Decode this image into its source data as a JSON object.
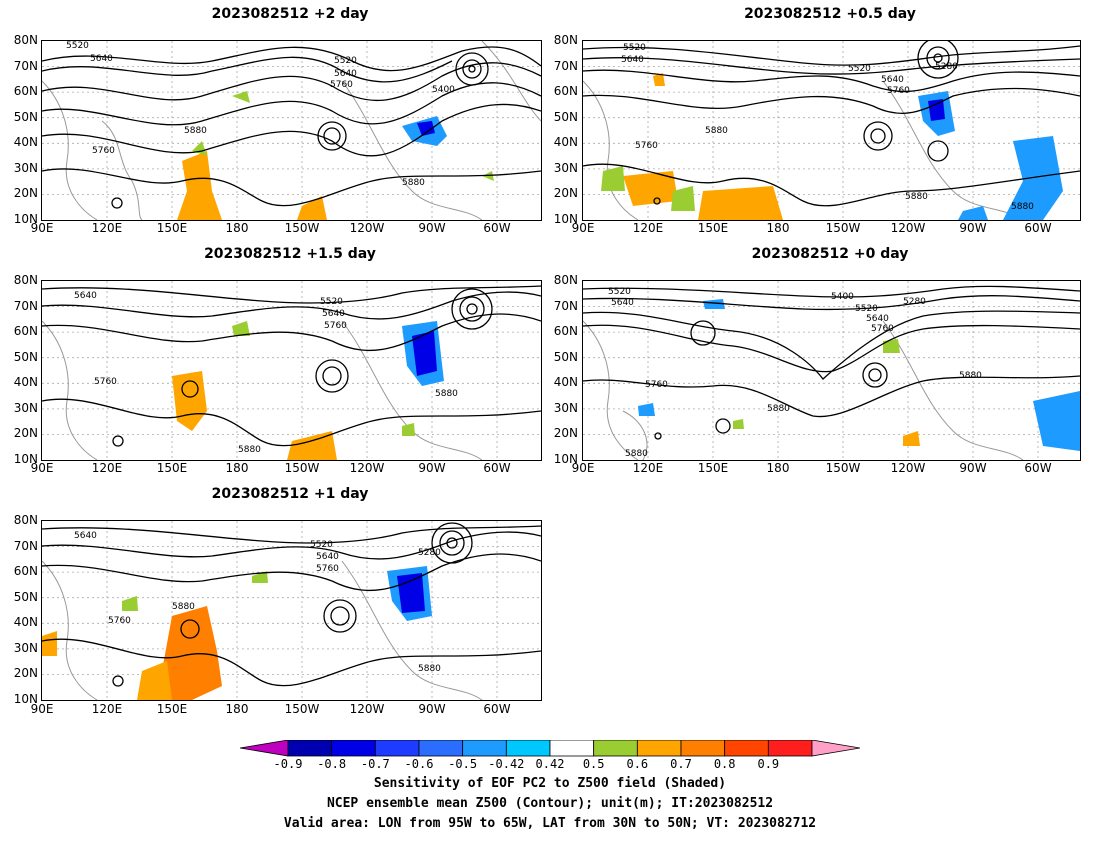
{
  "panels": [
    {
      "id": "p2day",
      "title": "2023082512 +2 day"
    },
    {
      "id": "p05day",
      "title": "2023082512 +0.5 day"
    },
    {
      "id": "p15day",
      "title": "2023082512 +1.5 day"
    },
    {
      "id": "p0day",
      "title": "2023082512 +0 day"
    },
    {
      "id": "p1day",
      "title": "2023082512 +1 day"
    }
  ],
  "lat_ticks": [
    "80N",
    "70N",
    "60N",
    "50N",
    "40N",
    "30N",
    "20N",
    "10N"
  ],
  "lon_ticks": [
    "90E",
    "120E",
    "150E",
    "180",
    "150W",
    "120W",
    "90W",
    "60W"
  ],
  "contour_labels": {
    "p2day": [
      "5520",
      "5640",
      "5520",
      "5640",
      "5760",
      "5400",
      "5880",
      "5760",
      "5880"
    ],
    "p05day": [
      "5520",
      "5640",
      "5280",
      "5520",
      "5640",
      "5760",
      "5880",
      "5760",
      "5880",
      "5880"
    ],
    "p15day": [
      "5640",
      "5520",
      "5640",
      "5760",
      "5760",
      "5880",
      "5880"
    ],
    "p0day": [
      "5520",
      "5640",
      "5400",
      "5280",
      "5520",
      "5640",
      "5760",
      "5760",
      "5880",
      "5880",
      "5880"
    ],
    "p1day": [
      "5640",
      "5520",
      "5640",
      "5760",
      "5280",
      "5880",
      "5760",
      "5880"
    ]
  },
  "colorbar": {
    "colors": [
      "#c000c0",
      "#0000b0",
      "#0000e6",
      "#1e3cff",
      "#2a6dff",
      "#1e9bff",
      "#00c8ff",
      "#ffffff",
      "#9acd32",
      "#ffa500",
      "#ff7f00",
      "#ff4500",
      "#ff1e1e",
      "#ffa0c8"
    ],
    "labels": [
      "-0.9",
      "-0.8",
      "-0.7",
      "-0.6",
      "-0.5",
      "-0.42",
      "0.42",
      "0.5",
      "0.6",
      "0.7",
      "0.8",
      "0.9"
    ]
  },
  "caption": {
    "line1": "Sensitivity of EOF PC2 to Z500 field (Shaded)",
    "line2": "NCEP ensemble mean Z500 (Contour); unit(m); IT:2023082512",
    "line3": "Valid area: LON from 95W to 65W, LAT from 30N to 50N; VT: 2023082712"
  }
}
